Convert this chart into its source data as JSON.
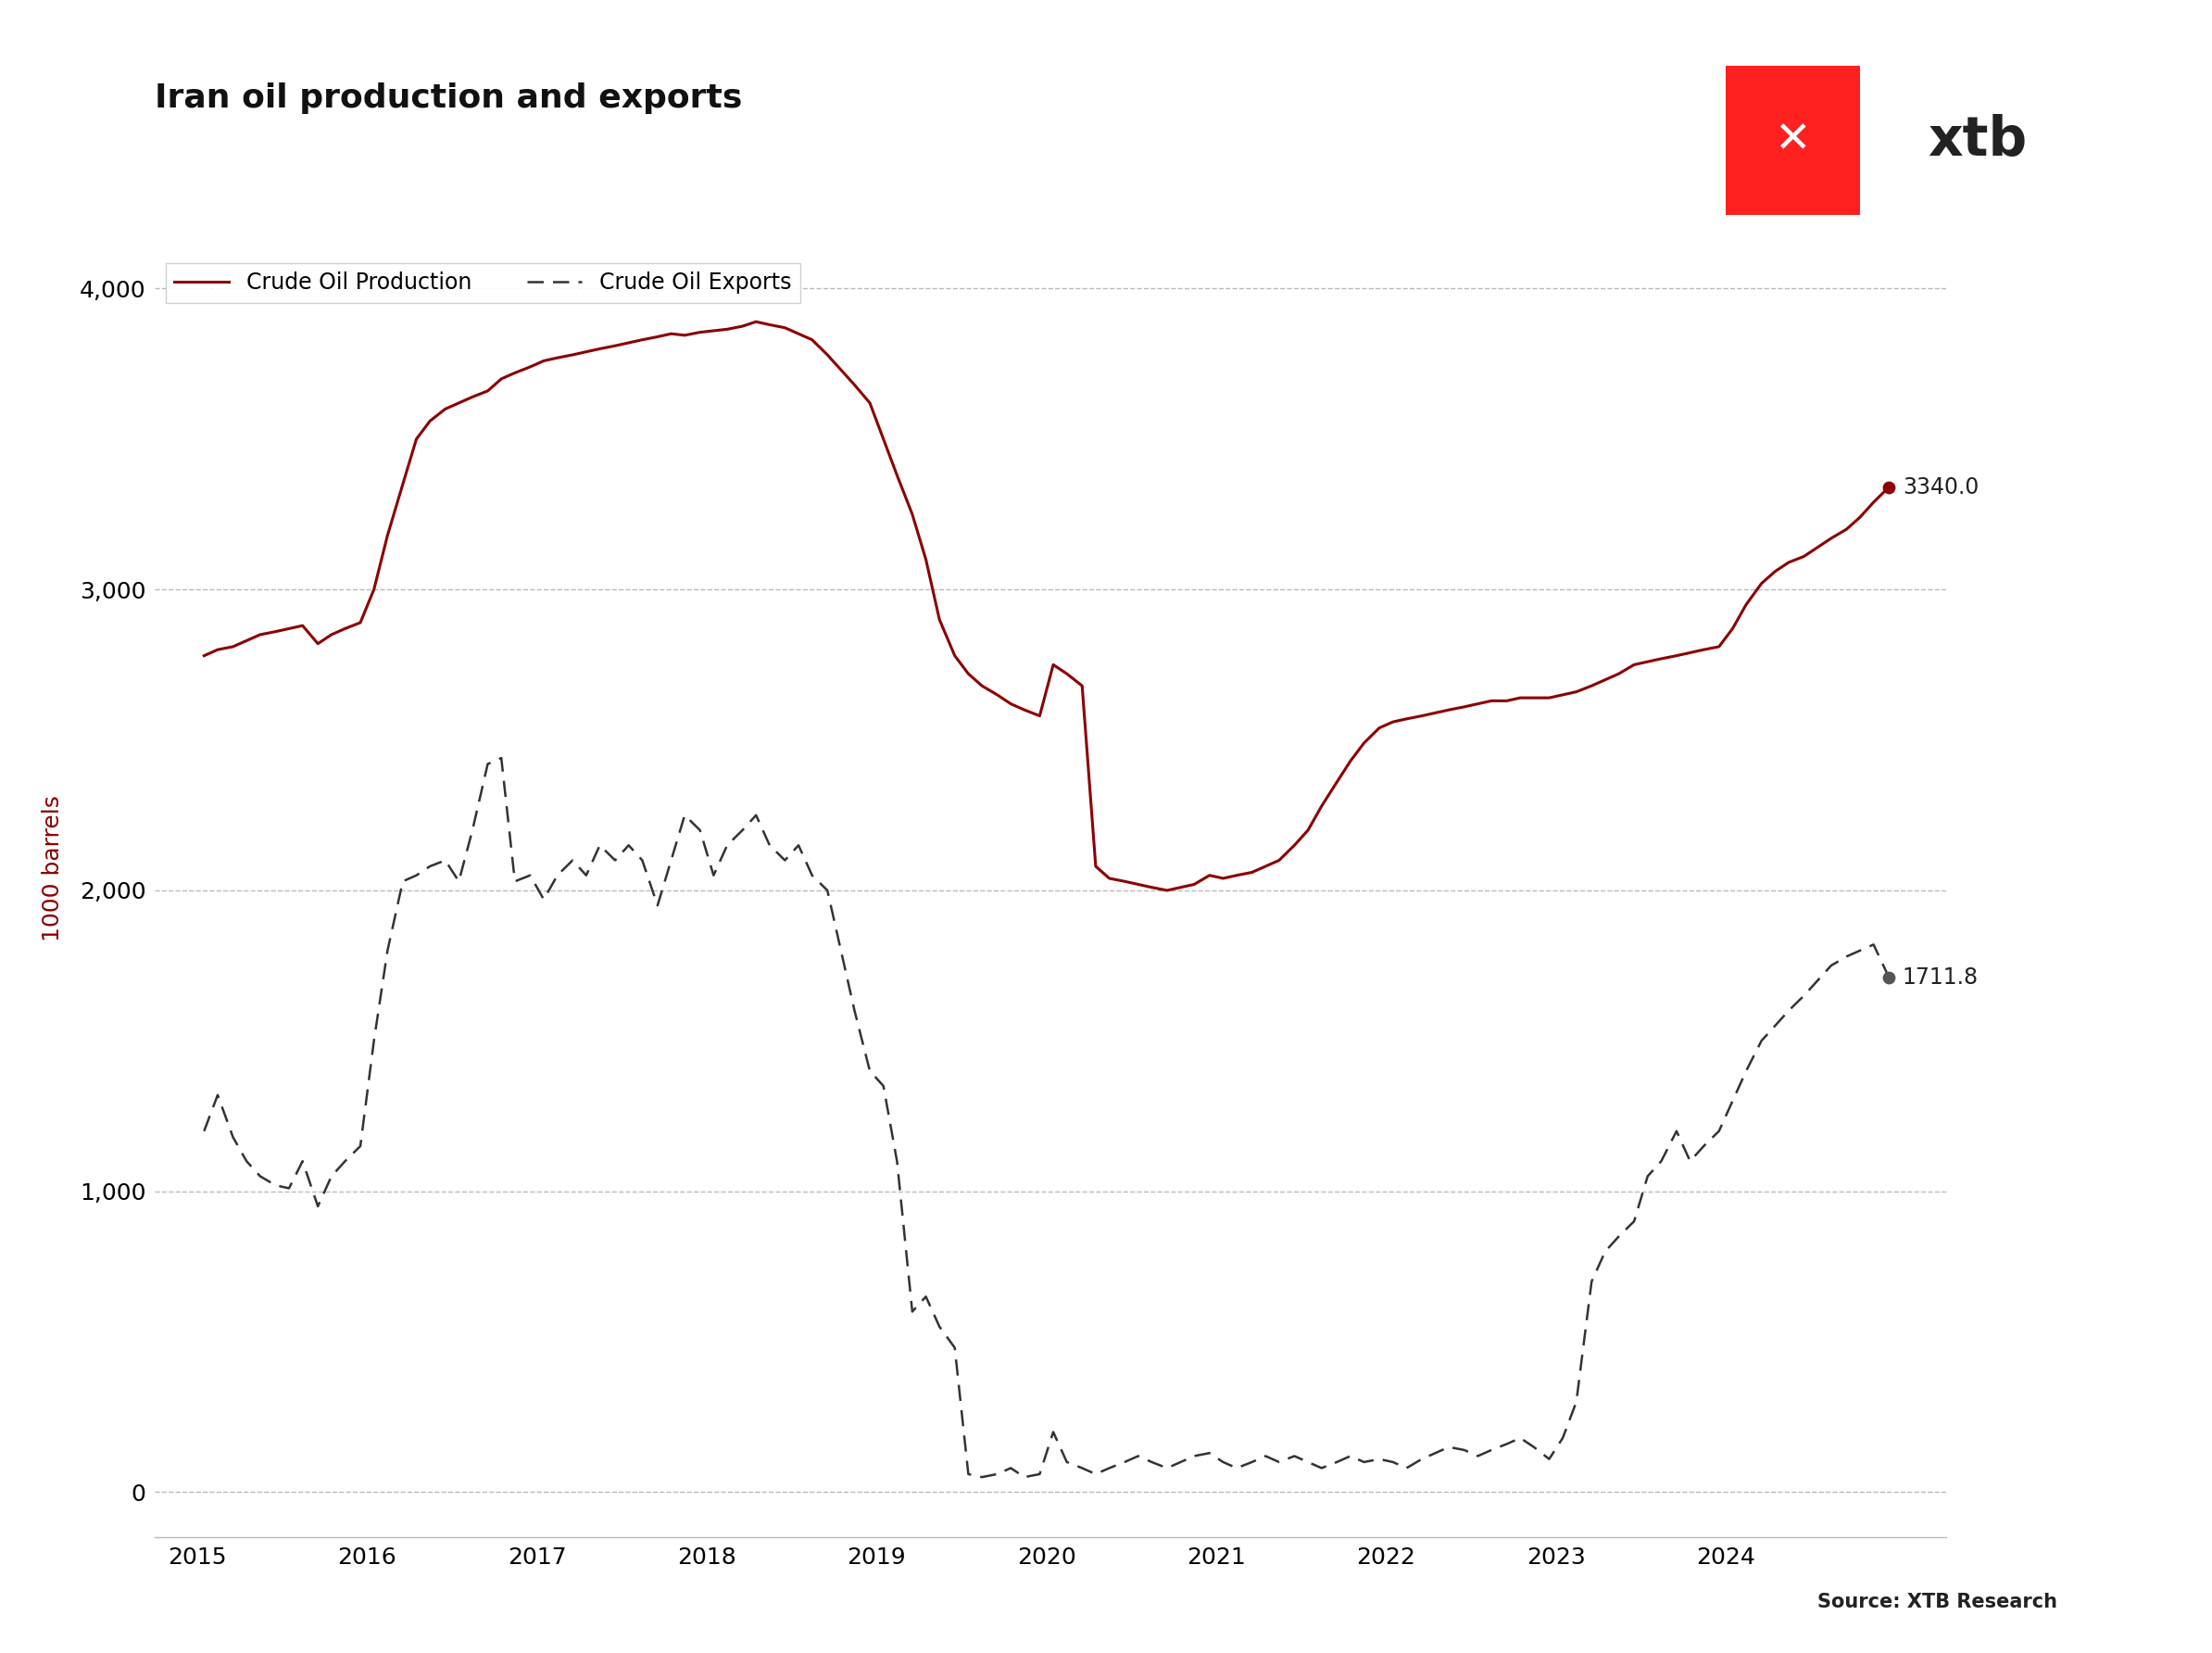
{
  "title": "Iran oil production and exports",
  "ylabel": "1000 barrels",
  "source": "Source: XTB Research",
  "production_color": "#8B0000",
  "exports_color": "#333333",
  "background_color": "#ffffff",
  "end_label_production": "3340.0",
  "end_label_exports": "1711.8",
  "ylim": [
    -150,
    4300
  ],
  "yticks": [
    0,
    1000,
    2000,
    3000,
    4000
  ],
  "xlim_left": 2014.75,
  "xlim_right": 2025.3,
  "production_data": [
    [
      2015.04,
      2780
    ],
    [
      2015.12,
      2800
    ],
    [
      2015.21,
      2810
    ],
    [
      2015.29,
      2830
    ],
    [
      2015.37,
      2850
    ],
    [
      2015.46,
      2860
    ],
    [
      2015.54,
      2870
    ],
    [
      2015.62,
      2880
    ],
    [
      2015.71,
      2820
    ],
    [
      2015.79,
      2850
    ],
    [
      2015.87,
      2870
    ],
    [
      2015.96,
      2890
    ],
    [
      2016.04,
      3000
    ],
    [
      2016.12,
      3180
    ],
    [
      2016.21,
      3350
    ],
    [
      2016.29,
      3500
    ],
    [
      2016.37,
      3560
    ],
    [
      2016.46,
      3600
    ],
    [
      2016.54,
      3620
    ],
    [
      2016.62,
      3640
    ],
    [
      2016.71,
      3660
    ],
    [
      2016.79,
      3700
    ],
    [
      2016.87,
      3720
    ],
    [
      2016.96,
      3740
    ],
    [
      2017.04,
      3760
    ],
    [
      2017.12,
      3770
    ],
    [
      2017.21,
      3780
    ],
    [
      2017.29,
      3790
    ],
    [
      2017.37,
      3800
    ],
    [
      2017.46,
      3810
    ],
    [
      2017.54,
      3820
    ],
    [
      2017.62,
      3830
    ],
    [
      2017.71,
      3840
    ],
    [
      2017.79,
      3850
    ],
    [
      2017.87,
      3845
    ],
    [
      2017.96,
      3855
    ],
    [
      2018.04,
      3860
    ],
    [
      2018.12,
      3865
    ],
    [
      2018.21,
      3875
    ],
    [
      2018.29,
      3890
    ],
    [
      2018.37,
      3880
    ],
    [
      2018.46,
      3870
    ],
    [
      2018.54,
      3850
    ],
    [
      2018.62,
      3830
    ],
    [
      2018.71,
      3780
    ],
    [
      2018.79,
      3730
    ],
    [
      2018.87,
      3680
    ],
    [
      2018.96,
      3620
    ],
    [
      2019.04,
      3500
    ],
    [
      2019.12,
      3380
    ],
    [
      2019.21,
      3250
    ],
    [
      2019.29,
      3100
    ],
    [
      2019.37,
      2900
    ],
    [
      2019.46,
      2780
    ],
    [
      2019.54,
      2720
    ],
    [
      2019.62,
      2680
    ],
    [
      2019.71,
      2650
    ],
    [
      2019.79,
      2620
    ],
    [
      2019.87,
      2600
    ],
    [
      2019.96,
      2580
    ],
    [
      2020.04,
      2750
    ],
    [
      2020.12,
      2720
    ],
    [
      2020.21,
      2680
    ],
    [
      2020.29,
      2080
    ],
    [
      2020.37,
      2040
    ],
    [
      2020.46,
      2030
    ],
    [
      2020.54,
      2020
    ],
    [
      2020.62,
      2010
    ],
    [
      2020.71,
      2000
    ],
    [
      2020.79,
      2010
    ],
    [
      2020.87,
      2020
    ],
    [
      2020.96,
      2050
    ],
    [
      2021.04,
      2040
    ],
    [
      2021.12,
      2050
    ],
    [
      2021.21,
      2060
    ],
    [
      2021.29,
      2080
    ],
    [
      2021.37,
      2100
    ],
    [
      2021.46,
      2150
    ],
    [
      2021.54,
      2200
    ],
    [
      2021.62,
      2280
    ],
    [
      2021.71,
      2360
    ],
    [
      2021.79,
      2430
    ],
    [
      2021.87,
      2490
    ],
    [
      2021.96,
      2540
    ],
    [
      2022.04,
      2560
    ],
    [
      2022.12,
      2570
    ],
    [
      2022.21,
      2580
    ],
    [
      2022.29,
      2590
    ],
    [
      2022.37,
      2600
    ],
    [
      2022.46,
      2610
    ],
    [
      2022.54,
      2620
    ],
    [
      2022.62,
      2630
    ],
    [
      2022.71,
      2630
    ],
    [
      2022.79,
      2640
    ],
    [
      2022.87,
      2640
    ],
    [
      2022.96,
      2640
    ],
    [
      2023.04,
      2650
    ],
    [
      2023.12,
      2660
    ],
    [
      2023.21,
      2680
    ],
    [
      2023.29,
      2700
    ],
    [
      2023.37,
      2720
    ],
    [
      2023.46,
      2750
    ],
    [
      2023.54,
      2760
    ],
    [
      2023.62,
      2770
    ],
    [
      2023.71,
      2780
    ],
    [
      2023.79,
      2790
    ],
    [
      2023.87,
      2800
    ],
    [
      2023.96,
      2810
    ],
    [
      2024.04,
      2870
    ],
    [
      2024.12,
      2950
    ],
    [
      2024.21,
      3020
    ],
    [
      2024.29,
      3060
    ],
    [
      2024.37,
      3090
    ],
    [
      2024.46,
      3110
    ],
    [
      2024.54,
      3140
    ],
    [
      2024.62,
      3170
    ],
    [
      2024.71,
      3200
    ],
    [
      2024.79,
      3240
    ],
    [
      2024.87,
      3290
    ],
    [
      2024.96,
      3340
    ]
  ],
  "exports_data": [
    [
      2015.04,
      1200
    ],
    [
      2015.12,
      1320
    ],
    [
      2015.21,
      1180
    ],
    [
      2015.29,
      1100
    ],
    [
      2015.37,
      1050
    ],
    [
      2015.46,
      1020
    ],
    [
      2015.54,
      1010
    ],
    [
      2015.62,
      1100
    ],
    [
      2015.71,
      950
    ],
    [
      2015.79,
      1050
    ],
    [
      2015.87,
      1100
    ],
    [
      2015.96,
      1150
    ],
    [
      2016.04,
      1500
    ],
    [
      2016.12,
      1800
    ],
    [
      2016.21,
      2030
    ],
    [
      2016.29,
      2050
    ],
    [
      2016.37,
      2080
    ],
    [
      2016.46,
      2100
    ],
    [
      2016.54,
      2030
    ],
    [
      2016.62,
      2200
    ],
    [
      2016.71,
      2420
    ],
    [
      2016.79,
      2440
    ],
    [
      2016.87,
      2030
    ],
    [
      2016.96,
      2050
    ],
    [
      2017.04,
      1970
    ],
    [
      2017.12,
      2050
    ],
    [
      2017.21,
      2100
    ],
    [
      2017.29,
      2050
    ],
    [
      2017.37,
      2150
    ],
    [
      2017.46,
      2100
    ],
    [
      2017.54,
      2150
    ],
    [
      2017.62,
      2100
    ],
    [
      2017.71,
      1950
    ],
    [
      2017.79,
      2100
    ],
    [
      2017.87,
      2250
    ],
    [
      2017.96,
      2200
    ],
    [
      2018.04,
      2050
    ],
    [
      2018.12,
      2150
    ],
    [
      2018.21,
      2200
    ],
    [
      2018.29,
      2250
    ],
    [
      2018.37,
      2150
    ],
    [
      2018.46,
      2100
    ],
    [
      2018.54,
      2150
    ],
    [
      2018.62,
      2050
    ],
    [
      2018.71,
      2000
    ],
    [
      2018.79,
      1800
    ],
    [
      2018.87,
      1600
    ],
    [
      2018.96,
      1400
    ],
    [
      2019.04,
      1350
    ],
    [
      2019.12,
      1100
    ],
    [
      2019.21,
      600
    ],
    [
      2019.29,
      650
    ],
    [
      2019.37,
      550
    ],
    [
      2019.46,
      480
    ],
    [
      2019.54,
      60
    ],
    [
      2019.62,
      50
    ],
    [
      2019.71,
      60
    ],
    [
      2019.79,
      80
    ],
    [
      2019.87,
      50
    ],
    [
      2019.96,
      60
    ],
    [
      2020.04,
      200
    ],
    [
      2020.12,
      100
    ],
    [
      2020.21,
      80
    ],
    [
      2020.29,
      60
    ],
    [
      2020.37,
      80
    ],
    [
      2020.46,
      100
    ],
    [
      2020.54,
      120
    ],
    [
      2020.62,
      100
    ],
    [
      2020.71,
      80
    ],
    [
      2020.79,
      100
    ],
    [
      2020.87,
      120
    ],
    [
      2020.96,
      130
    ],
    [
      2021.04,
      100
    ],
    [
      2021.12,
      80
    ],
    [
      2021.21,
      100
    ],
    [
      2021.29,
      120
    ],
    [
      2021.37,
      100
    ],
    [
      2021.46,
      120
    ],
    [
      2021.54,
      100
    ],
    [
      2021.62,
      80
    ],
    [
      2021.71,
      100
    ],
    [
      2021.79,
      120
    ],
    [
      2021.87,
      100
    ],
    [
      2021.96,
      110
    ],
    [
      2022.04,
      100
    ],
    [
      2022.12,
      80
    ],
    [
      2022.21,
      110
    ],
    [
      2022.29,
      130
    ],
    [
      2022.37,
      150
    ],
    [
      2022.46,
      140
    ],
    [
      2022.54,
      120
    ],
    [
      2022.62,
      140
    ],
    [
      2022.71,
      160
    ],
    [
      2022.79,
      180
    ],
    [
      2022.87,
      150
    ],
    [
      2022.96,
      110
    ],
    [
      2023.04,
      180
    ],
    [
      2023.12,
      300
    ],
    [
      2023.21,
      700
    ],
    [
      2023.29,
      800
    ],
    [
      2023.37,
      850
    ],
    [
      2023.46,
      900
    ],
    [
      2023.54,
      1050
    ],
    [
      2023.62,
      1100
    ],
    [
      2023.71,
      1200
    ],
    [
      2023.79,
      1100
    ],
    [
      2023.87,
      1150
    ],
    [
      2023.96,
      1200
    ],
    [
      2024.04,
      1300
    ],
    [
      2024.12,
      1400
    ],
    [
      2024.21,
      1500
    ],
    [
      2024.29,
      1550
    ],
    [
      2024.37,
      1600
    ],
    [
      2024.46,
      1650
    ],
    [
      2024.54,
      1700
    ],
    [
      2024.62,
      1750
    ],
    [
      2024.71,
      1780
    ],
    [
      2024.79,
      1800
    ],
    [
      2024.87,
      1820
    ],
    [
      2024.96,
      1711.8
    ]
  ]
}
